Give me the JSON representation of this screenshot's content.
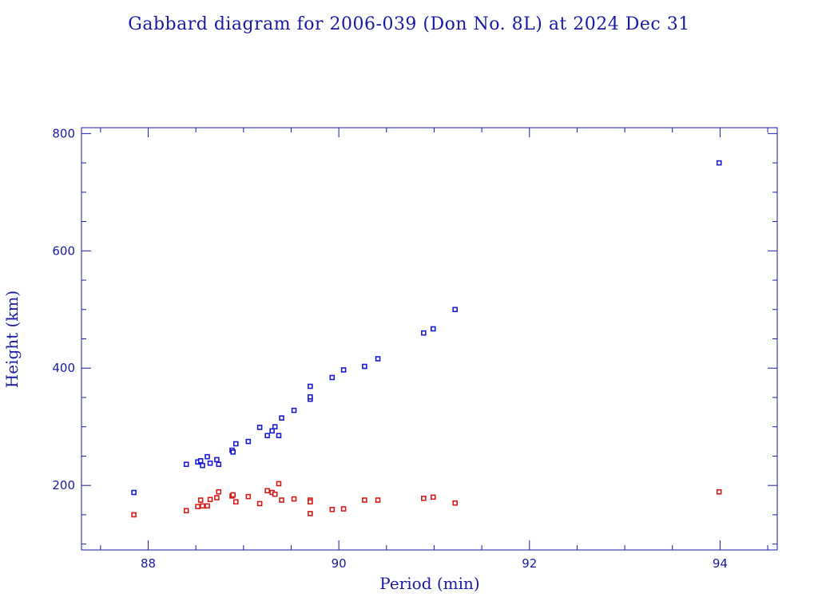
{
  "chart_data": {
    "type": "scatter",
    "title": "Gabbard diagram for 2006-039 (Don No. 8L) at 2024 Dec 31",
    "xlabel": "Period (min)",
    "ylabel": "Height (km)",
    "xlim": [
      87.3,
      94.6
    ],
    "ylim": [
      90,
      810
    ],
    "x_ticks": [
      88,
      90,
      92,
      94
    ],
    "x_tick_labels": [
      "88",
      "90",
      "92",
      "94"
    ],
    "y_ticks": [
      200,
      400,
      600,
      800
    ],
    "y_tick_labels": [
      "200",
      "400",
      "600",
      "800"
    ],
    "x_minor_step": 0.5,
    "y_minor_step": 50,
    "grid": false,
    "legend": "none",
    "colors": {
      "text": "#1a1aa6",
      "apogee": "#1a1ad9",
      "perigee": "#d91a1a"
    },
    "series": [
      {
        "color": "#1a1ad9",
        "points": [
          [
            87.85,
            188
          ],
          [
            88.4,
            236
          ],
          [
            88.52,
            240
          ],
          [
            88.55,
            242
          ],
          [
            88.57,
            234
          ],
          [
            88.62,
            249
          ],
          [
            88.65,
            238
          ],
          [
            88.72,
            244
          ],
          [
            88.74,
            236
          ],
          [
            88.88,
            260
          ],
          [
            88.89,
            257
          ],
          [
            88.92,
            271
          ],
          [
            89.05,
            275
          ],
          [
            89.17,
            299
          ],
          [
            89.25,
            285
          ],
          [
            89.3,
            293
          ],
          [
            89.33,
            300
          ],
          [
            89.37,
            285
          ],
          [
            89.4,
            315
          ],
          [
            89.53,
            328
          ],
          [
            89.7,
            347
          ],
          [
            89.7,
            351
          ],
          [
            89.7,
            369
          ],
          [
            89.93,
            384
          ],
          [
            90.05,
            397
          ],
          [
            90.27,
            403
          ],
          [
            90.41,
            416
          ],
          [
            90.89,
            460
          ],
          [
            90.99,
            467
          ],
          [
            91.22,
            500
          ],
          [
            93.99,
            750
          ]
        ]
      },
      {
        "color": "#d91a1a",
        "points": [
          [
            87.85,
            150
          ],
          [
            88.4,
            157
          ],
          [
            88.52,
            164
          ],
          [
            88.55,
            175
          ],
          [
            88.57,
            165
          ],
          [
            88.62,
            165
          ],
          [
            88.65,
            176
          ],
          [
            88.72,
            179
          ],
          [
            88.74,
            189
          ],
          [
            88.88,
            182
          ],
          [
            88.89,
            184
          ],
          [
            88.92,
            172
          ],
          [
            89.05,
            181
          ],
          [
            89.17,
            169
          ],
          [
            89.25,
            191
          ],
          [
            89.3,
            188
          ],
          [
            89.33,
            185
          ],
          [
            89.37,
            203
          ],
          [
            89.4,
            175
          ],
          [
            89.53,
            177
          ],
          [
            89.7,
            175
          ],
          [
            89.7,
            172
          ],
          [
            89.7,
            152
          ],
          [
            89.93,
            159
          ],
          [
            90.05,
            160
          ],
          [
            90.27,
            175
          ],
          [
            90.41,
            175
          ],
          [
            90.89,
            178
          ],
          [
            90.99,
            180
          ],
          [
            91.22,
            170
          ],
          [
            93.99,
            189
          ]
        ]
      }
    ]
  }
}
